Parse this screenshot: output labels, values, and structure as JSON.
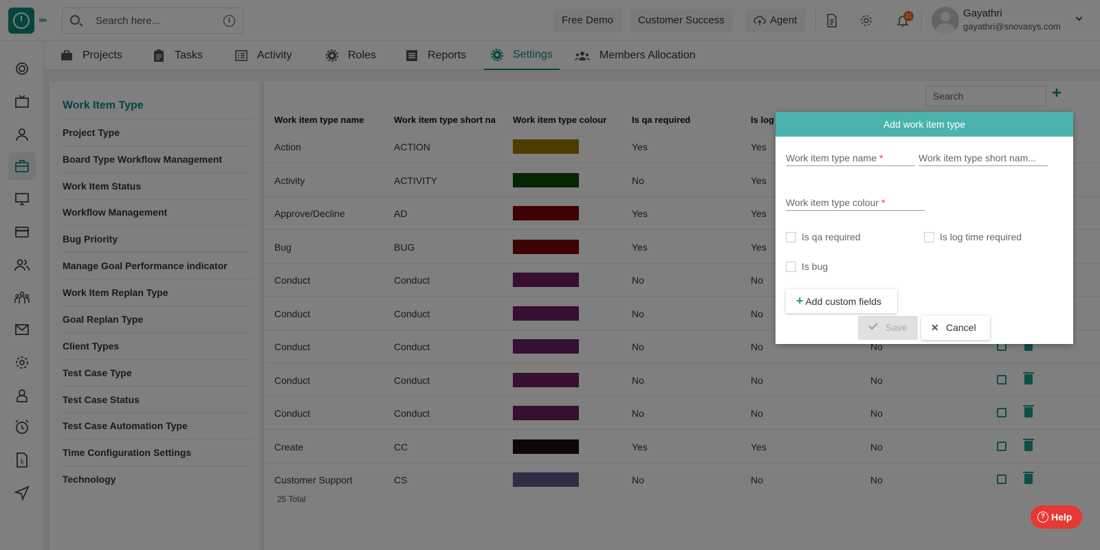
{
  "search": {
    "placeholder": "Search here..."
  },
  "header": {
    "free_demo": "Free Demo",
    "customer_success": "Customer Success",
    "agent": "Agent",
    "notification_count": "31",
    "user_name": "Gayathri",
    "user_email": "gayathri@snovasys.com"
  },
  "tabs": [
    {
      "label": "Projects",
      "icon": "briefcase-icon"
    },
    {
      "label": "Tasks",
      "icon": "clipboard-icon"
    },
    {
      "label": "Activity",
      "icon": "list-icon"
    },
    {
      "label": "Roles",
      "icon": "gear-icon"
    },
    {
      "label": "Reports",
      "icon": "report-icon"
    },
    {
      "label": "Settings",
      "icon": "settings-icon",
      "active": true
    },
    {
      "label": "Members Allocation",
      "icon": "users-icon"
    }
  ],
  "sidebar": {
    "items": [
      "Work Item Type",
      "Project Type",
      "Board Type Workflow Management",
      "Work Item Status",
      "Workflow Management",
      "Bug Priority",
      "Manage Goal Performance indicator",
      "Work Item Replan Type",
      "Goal Replan Type",
      "Client Types",
      "Test Case Type",
      "Test Case Status",
      "Test Case Automation Type",
      "Time Configuration Settings",
      "Technology"
    ]
  },
  "table": {
    "search_placeholder": "Search",
    "add_label": "+",
    "columns": [
      "Work item type name",
      "Work item type short na",
      "Work item type colour",
      "Is qa required",
      "Is log"
    ],
    "rows": [
      {
        "name": "Action",
        "short": "ACTION",
        "color": "#9c7a00",
        "qa": "Yes",
        "log": "Yes",
        "bug": ""
      },
      {
        "name": "Activity",
        "short": "ACTIVITY",
        "color": "#0a4a0a",
        "qa": "No",
        "log": "Yes",
        "bug": ""
      },
      {
        "name": "Approve/Decline",
        "short": "AD",
        "color": "#7c0707",
        "qa": "Yes",
        "log": "Yes",
        "bug": ""
      },
      {
        "name": "Bug",
        "short": "BUG",
        "color": "#7c0707",
        "qa": "Yes",
        "log": "Yes",
        "bug": ""
      },
      {
        "name": "Conduct",
        "short": "Conduct",
        "color": "#6e1f61",
        "qa": "No",
        "log": "No",
        "bug": ""
      },
      {
        "name": "Conduct",
        "short": "Conduct",
        "color": "#6e1f61",
        "qa": "No",
        "log": "No",
        "bug": ""
      },
      {
        "name": "Conduct",
        "short": "Conduct",
        "color": "#6e1f61",
        "qa": "No",
        "log": "No",
        "bug": "No"
      },
      {
        "name": "Conduct",
        "short": "Conduct",
        "color": "#6e1f61",
        "qa": "No",
        "log": "No",
        "bug": "No"
      },
      {
        "name": "Conduct",
        "short": "Conduct",
        "color": "#6e1f61",
        "qa": "No",
        "log": "No",
        "bug": "No"
      },
      {
        "name": "Create",
        "short": "CC",
        "color": "#1e0c14",
        "qa": "Yes",
        "log": "Yes",
        "bug": "No"
      },
      {
        "name": "Customer Support",
        "short": "CS",
        "color": "#5b5a8a",
        "qa": "No",
        "log": "No",
        "bug": "No"
      }
    ],
    "total": "25 Total"
  },
  "dialog": {
    "title": "Add work item type",
    "name_label": "Work item type name",
    "short_label": "Work item type short nam...",
    "colour_label": "Work item type colour",
    "required_mark": "*",
    "qa_label": "Is qa required",
    "log_label": "Is log time required",
    "bug_label": "Is bug",
    "custom_fields_label": "Add custom fields",
    "custom_fields_plus": "+",
    "save_label": "Save",
    "cancel_label": "Cancel",
    "cancel_mark": "✕"
  },
  "help_label": "Help",
  "help_mark": "?",
  "colors": {
    "accent": "#0e8b7f",
    "dialog_header": "#4bb3ad",
    "help": "#e53935"
  }
}
